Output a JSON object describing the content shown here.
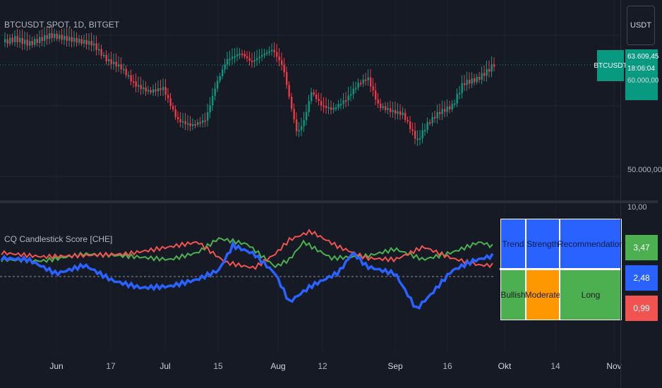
{
  "symbol": {
    "title": "BTCUSDT SPOT, 1D, BITGET",
    "tag": "BTCUSDT",
    "price_tag_lines": [
      "63.609,45",
      "18:06:04",
      "60.000,00"
    ]
  },
  "currency_button": "USDT",
  "price_axis": {
    "labels": [
      "50.000,00",
      "10,00"
    ]
  },
  "indicator": {
    "title": "CQ Candlestick Score [CHE]",
    "values": [
      {
        "label": "3,47",
        "color": "#4caf50"
      },
      {
        "label": "2,48",
        "color": "#2962ff"
      },
      {
        "label": "0,99",
        "color": "#f05350"
      }
    ],
    "series_colors": {
      "green": "#4caf50",
      "blue": "#2962ff",
      "red": "#f05350"
    },
    "table": {
      "headers": [
        "Trend",
        "Strength",
        "Recommendation"
      ],
      "values": [
        "Bullish",
        "Moderate",
        "Long"
      ],
      "colors": [
        "#4caf50",
        "#ff9800",
        "#4caf50"
      ]
    }
  },
  "time_axis": {
    "labels": [
      "Jun",
      "17",
      "Jul",
      "15",
      "Aug",
      "12",
      "Sep",
      "16",
      "Okt",
      "14",
      "Nov"
    ]
  },
  "colors": {
    "background": "#161a25",
    "up": "#089981",
    "down": "#f23645"
  }
}
